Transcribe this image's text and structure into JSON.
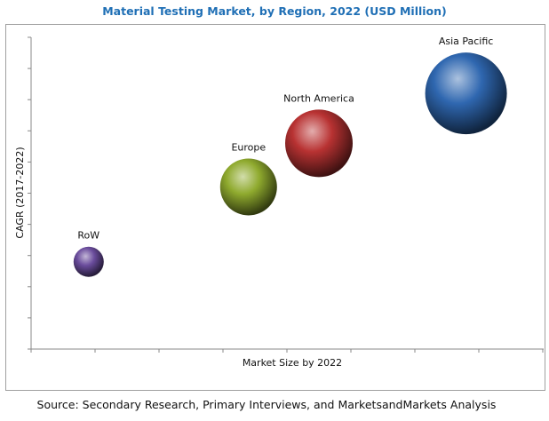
{
  "chart_data": {
    "type": "scatter",
    "subtype": "bubble",
    "title": "Material Testing Market, by Region, 2022 (USD Million)",
    "xlabel": "Market Size by 2022",
    "ylabel": "CAGR (2017-2022)",
    "xlim": [
      0,
      8
    ],
    "ylim": [
      0,
      10
    ],
    "x_ticks": 8,
    "y_ticks": 10,
    "grid": false,
    "tick_labels_shown": false,
    "points": [
      {
        "label": "RoW",
        "x": 0.9,
        "y": 2.8,
        "size": 17,
        "color": "#6a4c9c"
      },
      {
        "label": "Europe",
        "x": 3.4,
        "y": 5.2,
        "size": 32,
        "color": "#8faa2e"
      },
      {
        "label": "North America",
        "x": 4.5,
        "y": 6.6,
        "size": 38,
        "color": "#b83232"
      },
      {
        "label": "Asia Pacific",
        "x": 6.8,
        "y": 8.2,
        "size": 46,
        "color": "#2f67b0"
      }
    ]
  },
  "source": "Source: Secondary Research, Primary Interviews, and MarketsandMarkets Analysis"
}
